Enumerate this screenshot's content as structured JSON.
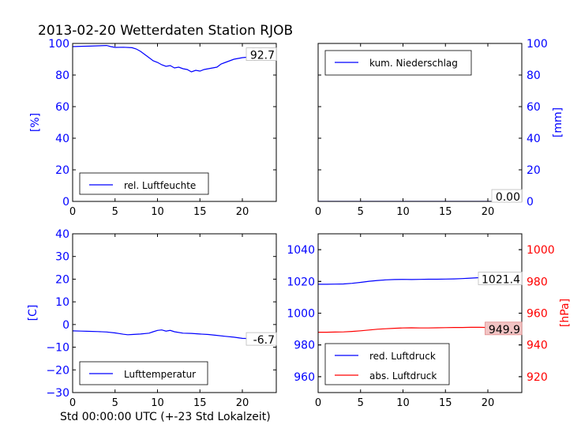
{
  "title": "2013-02-20 Wetterdaten Station RJOB",
  "xlabel": "Std 00:00:00 UTC (+-23 Std Lokalzeit)",
  "colors": {
    "blue": "#0000ff",
    "red": "#ff0000",
    "frame": "#000000",
    "badge_fill": "#f2c4c4"
  },
  "chart_data": [
    {
      "id": "humidity",
      "type": "line",
      "ylabel": "[%]",
      "xlim": [
        0,
        24
      ],
      "ylim": [
        0,
        100
      ],
      "xticks": [
        "0",
        "5",
        "10",
        "15",
        "20"
      ],
      "yticks": [
        "0",
        "20",
        "40",
        "60",
        "80",
        "100"
      ],
      "axis_side": "left",
      "legend_placement": "lower-left",
      "series": [
        {
          "name": "rel. Luftfeuchte",
          "color": "#0000ff",
          "x": [
            0,
            1,
            2,
            3,
            4,
            4.5,
            5,
            6,
            7,
            7.5,
            8,
            8.5,
            9,
            9.5,
            10,
            10.5,
            11,
            11.5,
            12,
            12.5,
            13,
            13.5,
            14,
            14.5,
            15,
            15.5,
            16,
            16.5,
            17,
            17.5,
            18,
            19,
            20,
            21,
            22,
            23,
            23.5,
            24
          ],
          "y": [
            98,
            98.2,
            98.3,
            98.5,
            98.7,
            98,
            97.5,
            97.6,
            97.3,
            96.5,
            95,
            93,
            91,
            89,
            88,
            86.5,
            85.5,
            86,
            84.5,
            85,
            84,
            83.5,
            82,
            83,
            82.5,
            83.5,
            84,
            84.5,
            85,
            87,
            88,
            90,
            91,
            91.5,
            92,
            92.5,
            92.6,
            92.7
          ]
        }
      ],
      "annotations": [
        {
          "text": "92.7",
          "x": 24,
          "y": 92.7
        }
      ]
    },
    {
      "id": "precipitation",
      "type": "line",
      "ylabel": "[mm]",
      "xlim": [
        0,
        24
      ],
      "ylim": [
        0,
        100
      ],
      "xticks": [
        "0",
        "5",
        "10",
        "15",
        "20"
      ],
      "yticks": [
        "0",
        "20",
        "40",
        "60",
        "80",
        "100"
      ],
      "axis_side": "right",
      "legend_placement": "top-left",
      "series": [
        {
          "name": "kum. Niederschlag",
          "color": "#0000ff",
          "x": [
            0,
            24
          ],
          "y": [
            0,
            0
          ]
        }
      ],
      "annotations": [
        {
          "text": "0.00",
          "x": 24,
          "y": 0
        }
      ]
    },
    {
      "id": "temperature",
      "type": "line",
      "ylabel": "[C]",
      "xlim": [
        0,
        24
      ],
      "ylim": [
        -30,
        40
      ],
      "xticks": [
        "0",
        "5",
        "10",
        "15",
        "20"
      ],
      "yticks": [
        "−30",
        "−20",
        "−10",
        "0",
        "10",
        "20",
        "30",
        "40"
      ],
      "axis_side": "left",
      "legend_placement": "lower-left",
      "series": [
        {
          "name": "Lufttemperatur",
          "color": "#0000ff",
          "x": [
            0,
            1,
            2,
            3,
            4,
            5,
            5.5,
            6,
            6.5,
            7,
            8,
            9,
            9.5,
            10,
            10.5,
            11,
            11.5,
            12,
            13,
            14,
            15,
            16,
            17,
            18,
            19,
            20,
            21,
            22,
            23,
            24
          ],
          "y": [
            -2.8,
            -2.9,
            -3,
            -3.1,
            -3.3,
            -3.7,
            -4,
            -4.3,
            -4.5,
            -4.4,
            -4.2,
            -3.8,
            -3.2,
            -2.6,
            -2.4,
            -2.9,
            -2.6,
            -3.2,
            -3.8,
            -3.9,
            -4.2,
            -4.4,
            -4.8,
            -5.2,
            -5.6,
            -6.1,
            -6.2,
            -6.4,
            -6.6,
            -6.7
          ]
        }
      ],
      "annotations": [
        {
          "text": "-6.7",
          "x": 24,
          "y": -6.7
        }
      ]
    },
    {
      "id": "pressure",
      "type": "line",
      "ylabel": "[hPa]",
      "xlim": [
        0,
        24
      ],
      "ylim_left": [
        950,
        1050
      ],
      "ylim_right": [
        910,
        1010
      ],
      "xticks": [
        "0",
        "5",
        "10",
        "15",
        "20"
      ],
      "yticks_left": [
        "960",
        "980",
        "1000",
        "1020",
        "1040"
      ],
      "yticks_right": [
        "920",
        "940",
        "960",
        "980",
        "1000"
      ],
      "axis_side": "both",
      "legend_placement": "lower-left",
      "series": [
        {
          "name": "red. Luftdruck",
          "color": "#0000ff",
          "axis": "left",
          "x": [
            0,
            1,
            2,
            3,
            4,
            5,
            6,
            7,
            8,
            9,
            10,
            11,
            12,
            13,
            14,
            15,
            16,
            17,
            18,
            19,
            20,
            21,
            22,
            23,
            24
          ],
          "y": [
            1018.2,
            1018.2,
            1018.3,
            1018.4,
            1018.8,
            1019.4,
            1020.1,
            1020.6,
            1021,
            1021.2,
            1021.3,
            1021.2,
            1021.3,
            1021.4,
            1021.4,
            1021.5,
            1021.6,
            1021.8,
            1022.1,
            1022.4,
            1022.5,
            1022.3,
            1021.9,
            1021.6,
            1021.4
          ]
        },
        {
          "name": "abs. Luftdruck",
          "color": "#ff0000",
          "axis": "right",
          "x": [
            0,
            1,
            2,
            3,
            4,
            5,
            6,
            7,
            8,
            9,
            10,
            11,
            12,
            13,
            14,
            15,
            16,
            17,
            18,
            19,
            20,
            21,
            22,
            23,
            24
          ],
          "y": [
            948,
            948,
            948.1,
            948.2,
            948.5,
            948.9,
            949.4,
            949.9,
            950.2,
            950.5,
            950.7,
            950.8,
            950.7,
            950.7,
            950.8,
            950.9,
            951,
            951,
            951.1,
            951.1,
            951,
            950.6,
            950.3,
            950.1,
            949.9
          ]
        }
      ],
      "annotations": [
        {
          "text": "1021.4",
          "x": 24,
          "y": 1021.4,
          "axis": "left"
        },
        {
          "text": "949.9",
          "x": 24,
          "y": 949.9,
          "axis": "right"
        }
      ]
    }
  ]
}
